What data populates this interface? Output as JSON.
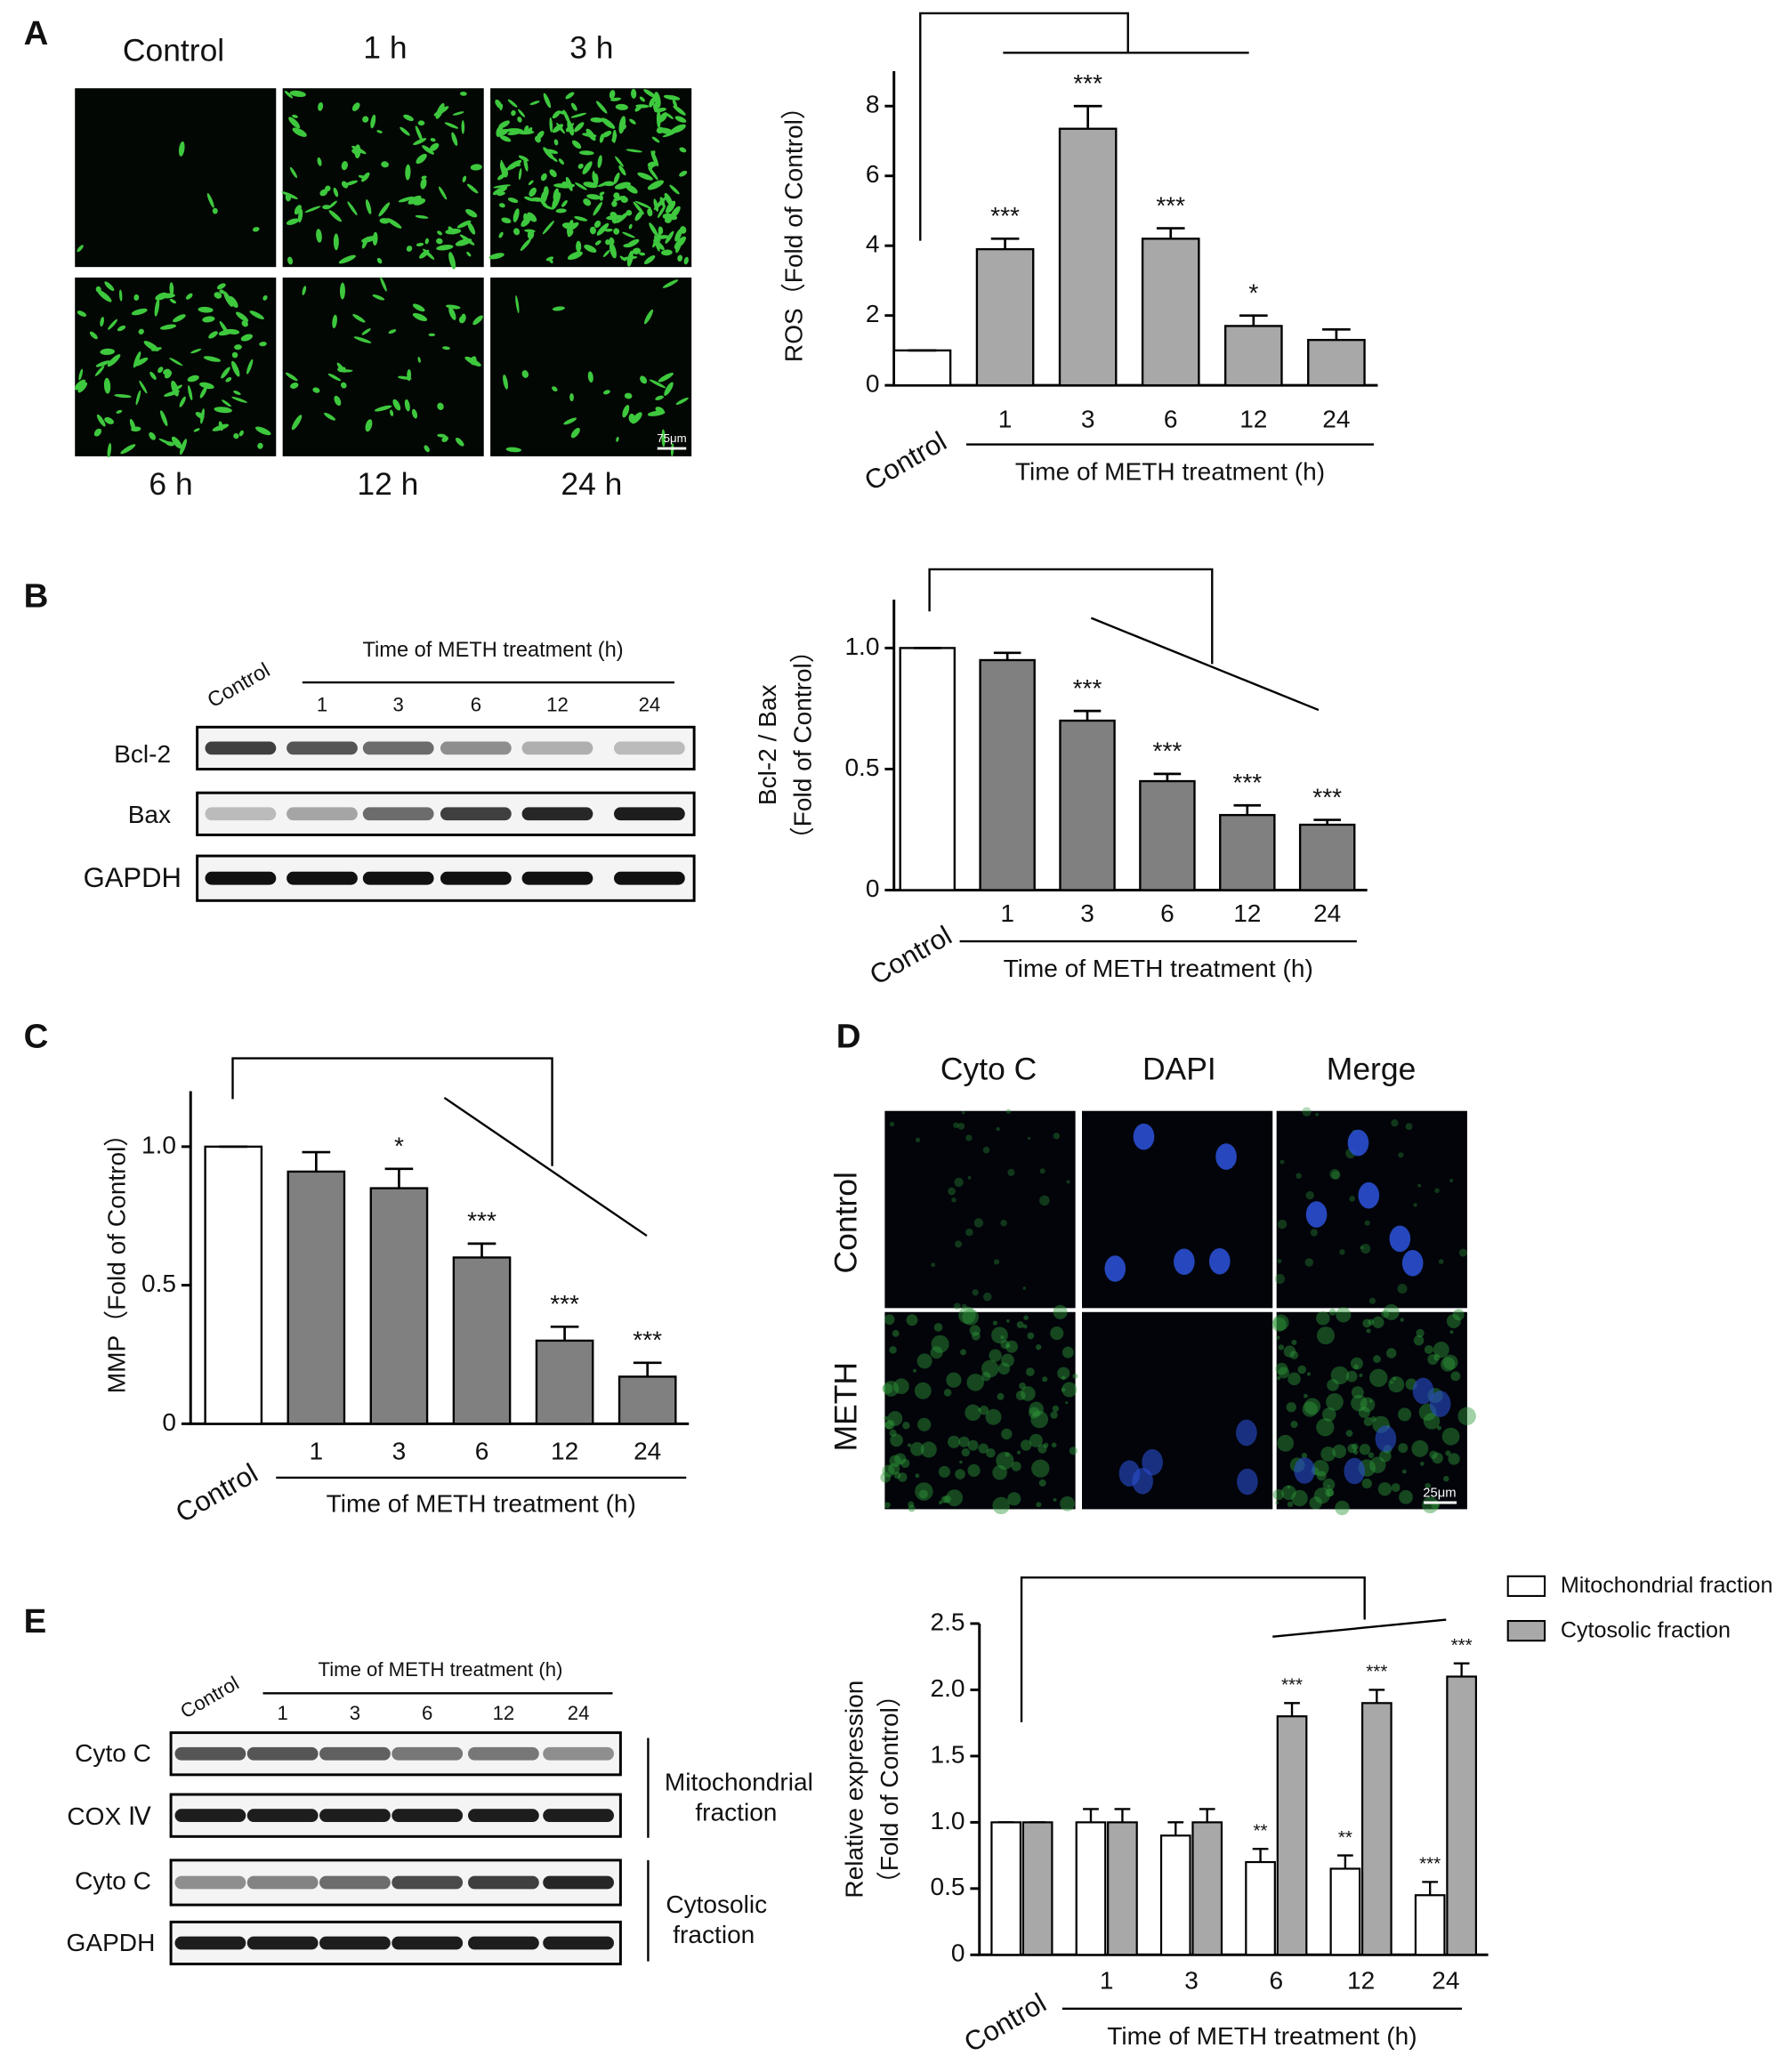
{
  "panel_labels": [
    "A",
    "B",
    "C",
    "D",
    "E"
  ],
  "panel_a": {
    "labels_top": [
      "Control",
      "1 h",
      "3 h"
    ],
    "labels_bottom": [
      "6 h",
      "12 h",
      "24 h"
    ],
    "scale_bar": "75μm"
  },
  "panel_b": {
    "control": "Control",
    "header": "Time of METH treatment (h)",
    "lanes": [
      "1",
      "3",
      "6",
      "12",
      "24"
    ],
    "rows": [
      "Bcl-2",
      "Bax",
      "GAPDH"
    ]
  },
  "panel_d": {
    "columns": [
      "Cyto C",
      "DAPI",
      "Merge"
    ],
    "rows": [
      "Control",
      "METH"
    ],
    "scale_bar": "25μm"
  },
  "panel_e": {
    "control": "Control",
    "header": "Time of METH treatment (h)",
    "lanes": [
      "1",
      "3",
      "6",
      "12",
      "24"
    ],
    "rows": [
      "Cyto C",
      "COX Ⅳ",
      "Cyto C",
      "GAPDH"
    ],
    "fractions": [
      [
        "Mitochondrial",
        "fraction"
      ],
      [
        "Cytosolic",
        "fraction"
      ]
    ]
  },
  "chart_data": [
    {
      "type": "bar",
      "ylabel": [
        "ROS（Fold of Control）"
      ],
      "xlabel": "Time of METH treatment (h)",
      "categories": [
        "Control",
        "1",
        "3",
        "6",
        "12",
        "24"
      ],
      "values": [
        1,
        3.9,
        7.35,
        4.2,
        1.7,
        1.3
      ],
      "errors": [
        0,
        0.3,
        0.65,
        0.3,
        0.3,
        0.3
      ],
      "significance": [
        null,
        "***",
        "***",
        "***",
        "*",
        null
      ],
      "colors": [
        "#ffffff",
        "#a8a8a8",
        "#a8a8a8",
        "#a8a8a8",
        "#a8a8a8",
        "#a8a8a8"
      ],
      "ylim": [
        0,
        9
      ],
      "yticks": [
        0,
        2,
        4,
        6,
        8
      ]
    },
    {
      "type": "bar",
      "ylabel": [
        "Bcl-2 / Bax",
        "（Fold of Control）"
      ],
      "xlabel": "Time of METH treatment (h)",
      "categories": [
        "Control",
        "1",
        "3",
        "6",
        "12",
        "24"
      ],
      "values": [
        1,
        0.95,
        0.7,
        0.45,
        0.31,
        0.27
      ],
      "errors": [
        0,
        0.03,
        0.04,
        0.03,
        0.04,
        0.02
      ],
      "significance": [
        null,
        null,
        "***",
        "***",
        "***",
        "***"
      ],
      "colors": [
        "#ffffff",
        "#808080",
        "#808080",
        "#808080",
        "#808080",
        "#808080"
      ],
      "ylim": [
        0,
        1.2
      ],
      "yticks": [
        0,
        0.5,
        {
          "value": 1,
          "label": "1.0"
        }
      ]
    },
    {
      "type": "bar",
      "ylabel": [
        "MMP（Fold of Control）"
      ],
      "xlabel": "Time of METH treatment (h)",
      "categories": [
        "Control",
        "1",
        "3",
        "6",
        "12",
        "24"
      ],
      "values": [
        1,
        0.91,
        0.85,
        0.6,
        0.3,
        0.17
      ],
      "errors": [
        0,
        0.07,
        0.07,
        0.05,
        0.05,
        0.05
      ],
      "significance": [
        null,
        null,
        "*",
        "***",
        "***",
        "***"
      ],
      "colors": [
        "#ffffff",
        "#808080",
        "#808080",
        "#808080",
        "#808080",
        "#808080"
      ],
      "ylim": [
        0,
        1.2
      ],
      "yticks": [
        0,
        0.5,
        {
          "value": 1,
          "label": "1.0"
        }
      ]
    },
    {
      "type": "grouped_bar",
      "ylabel": [
        "Relative expression",
        "（Fold of Control）"
      ],
      "xlabel": "Time of METH treatment (h)",
      "categories": [
        "Control",
        "1",
        "3",
        "6",
        "12",
        "24"
      ],
      "series": [
        {
          "name": "Mitochondrial fraction",
          "color": "#ffffff",
          "values": [
            1,
            1,
            0.9,
            0.7,
            0.65,
            0.45
          ],
          "errors": [
            0,
            0.1,
            0.1,
            0.1,
            0.1,
            0.1
          ],
          "significance": [
            null,
            null,
            null,
            "**",
            "**",
            "***"
          ]
        },
        {
          "name": "Cytosolic fraction",
          "color": "#a8a8a8",
          "values": [
            1,
            1,
            1,
            1.8,
            1.9,
            2.1
          ],
          "errors": [
            0,
            0.1,
            0.1,
            0.1,
            0.1,
            0.1
          ],
          "significance": [
            null,
            null,
            null,
            "***",
            "***",
            "***"
          ]
        }
      ],
      "ylim": [
        0,
        2.5
      ],
      "yticks": [
        0,
        0.5,
        {
          "value": 1,
          "label": "1.0"
        },
        1.5,
        {
          "value": 2,
          "label": "2.0"
        },
        2.5
      ]
    }
  ]
}
